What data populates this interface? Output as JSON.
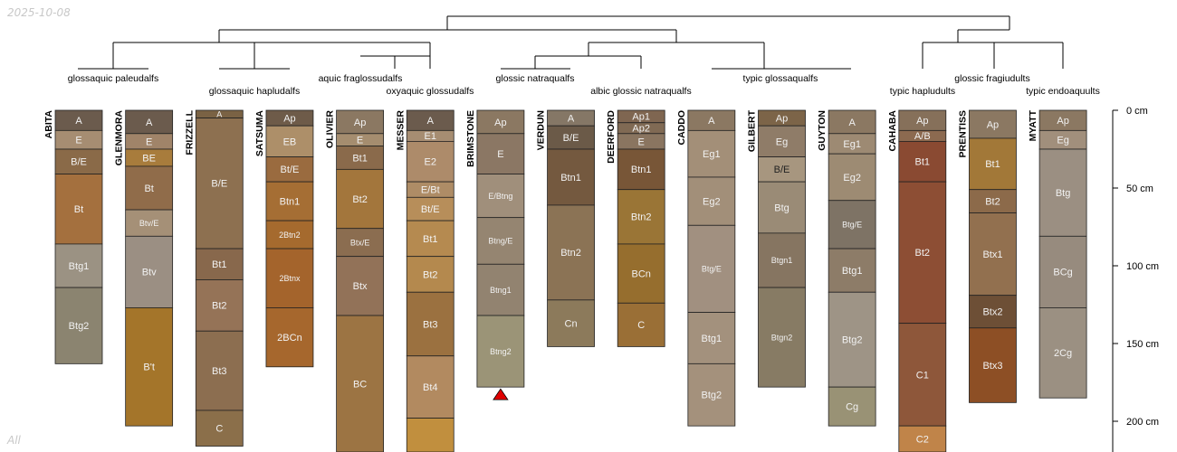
{
  "date_stamp": "2025-10-08",
  "corner_label": "All",
  "chart_data": {
    "type": "soil-profile-sketch",
    "depth_unit": "cm",
    "depth_axis": {
      "ticks": [
        0,
        50,
        100,
        150,
        200
      ],
      "tick_labels": [
        "0 cm",
        "50 cm",
        "100 cm",
        "150 cm",
        "200 cm"
      ],
      "range": [
        0,
        220
      ]
    },
    "taxa_labels": [
      "glossaquic paleudalfs",
      "glossaquic hapludalfs",
      "aquic fraglossudalfs",
      "oxyaquic glossudalfs",
      "glossic natraqualfs",
      "albic glossic natraqualfs",
      "typic glossaqualfs",
      "typic hapludults",
      "glossic fragiudults",
      "typic endoaquults"
    ],
    "truncated_marker_profile": "BRIMSTONE",
    "profiles": [
      {
        "name": "ABITA",
        "horizons": [
          {
            "name": "A",
            "top": 0,
            "bottom": 13,
            "color": "#6b5b4d"
          },
          {
            "name": "E",
            "top": 13,
            "bottom": 25,
            "color": "#a68d72"
          },
          {
            "name": "B/E",
            "top": 25,
            "bottom": 41,
            "color": "#8a6a48"
          },
          {
            "name": "Bt",
            "top": 41,
            "bottom": 86,
            "color": "#a4703e"
          },
          {
            "name": "Btg1",
            "top": 86,
            "bottom": 114,
            "color": "#9b9283"
          },
          {
            "name": "Btg2",
            "top": 114,
            "bottom": 163,
            "color": "#8b8470"
          }
        ]
      },
      {
        "name": "GLENMORA",
        "horizons": [
          {
            "name": "A",
            "top": 0,
            "bottom": 15,
            "color": "#6b5b4d"
          },
          {
            "name": "E",
            "top": 15,
            "bottom": 25,
            "color": "#a08469"
          },
          {
            "name": "BE",
            "top": 25,
            "bottom": 36,
            "color": "#a87c3c"
          },
          {
            "name": "Bt",
            "top": 36,
            "bottom": 64,
            "color": "#906c4a"
          },
          {
            "name": "Btv/E",
            "top": 64,
            "bottom": 81,
            "color": "#a59077"
          },
          {
            "name": "Btv",
            "top": 81,
            "bottom": 127,
            "color": "#9b8f83"
          },
          {
            "name": "B't",
            "top": 127,
            "bottom": 203,
            "color": "#a4752a"
          }
        ]
      },
      {
        "name": "FRIZZELL",
        "horizons": [
          {
            "name": "A",
            "top": 0,
            "bottom": 5,
            "color": "#7a6244"
          },
          {
            "name": "B/E",
            "top": 5,
            "bottom": 89,
            "color": "#8d7050"
          },
          {
            "name": "Bt1",
            "top": 89,
            "bottom": 109,
            "color": "#88684c"
          },
          {
            "name": "Bt2",
            "top": 109,
            "bottom": 142,
            "color": "#957357"
          },
          {
            "name": "Bt3",
            "top": 142,
            "bottom": 193,
            "color": "#8c6e50"
          },
          {
            "name": "C",
            "top": 193,
            "bottom": 216,
            "color": "#8b6f4a"
          }
        ]
      },
      {
        "name": "SATSUMA",
        "horizons": [
          {
            "name": "Ap",
            "top": 0,
            "bottom": 10,
            "color": "#6e5b49"
          },
          {
            "name": "EB",
            "top": 10,
            "bottom": 30,
            "color": "#ad8f69"
          },
          {
            "name": "Bt/E",
            "top": 30,
            "bottom": 46,
            "color": "#9a6b3f"
          },
          {
            "name": "Btn1",
            "top": 46,
            "bottom": 71,
            "color": "#a56e34"
          },
          {
            "name": "2Btn2",
            "top": 71,
            "bottom": 89,
            "color": "#a56a2e"
          },
          {
            "name": "2Btnx",
            "top": 89,
            "bottom": 127,
            "color": "#a4642c"
          },
          {
            "name": "2BCn",
            "top": 127,
            "bottom": 165,
            "color": "#a6672d"
          }
        ]
      },
      {
        "name": "OLIVIER",
        "horizons": [
          {
            "name": "Ap",
            "top": 0,
            "bottom": 15,
            "color": "#8b7862"
          },
          {
            "name": "E",
            "top": 15,
            "bottom": 23,
            "color": "#a58d6f"
          },
          {
            "name": "Bt1",
            "top": 23,
            "bottom": 38,
            "color": "#8a6a4b"
          },
          {
            "name": "Bt2",
            "top": 38,
            "bottom": 76,
            "color": "#a3763c"
          },
          {
            "name": "Btx/E",
            "top": 76,
            "bottom": 94,
            "color": "#8b6d50"
          },
          {
            "name": "Btx",
            "top": 94,
            "bottom": 132,
            "color": "#927258"
          },
          {
            "name": "BC",
            "top": 132,
            "bottom": 220,
            "color": "#9c7443"
          }
        ]
      },
      {
        "name": "MESSER",
        "horizons": [
          {
            "name": "A",
            "top": 0,
            "bottom": 13,
            "color": "#6b5b4d"
          },
          {
            "name": "E1",
            "top": 13,
            "bottom": 20,
            "color": "#a68d72"
          },
          {
            "name": "E2",
            "top": 20,
            "bottom": 46,
            "color": "#ad8b6a"
          },
          {
            "name": "E/Bt",
            "top": 46,
            "bottom": 56,
            "color": "#ae8c66"
          },
          {
            "name": "Bt/E",
            "top": 56,
            "bottom": 71,
            "color": "#b78e5a"
          },
          {
            "name": "Bt1",
            "top": 71,
            "bottom": 94,
            "color": "#b58a50"
          },
          {
            "name": "Bt2",
            "top": 94,
            "bottom": 117,
            "color": "#b4894e"
          },
          {
            "name": "Bt3",
            "top": 117,
            "bottom": 158,
            "color": "#9b7140"
          },
          {
            "name": "Bt4",
            "top": 158,
            "bottom": 198,
            "color": "#b28a60"
          },
          {
            "name": "",
            "top": 198,
            "bottom": 220,
            "color": "#c18f3e"
          }
        ]
      },
      {
        "name": "BRIMSTONE",
        "horizons": [
          {
            "name": "Ap",
            "top": 0,
            "bottom": 15,
            "color": "#8b7862"
          },
          {
            "name": "E",
            "top": 15,
            "bottom": 41,
            "color": "#8b7764"
          },
          {
            "name": "E/Btng",
            "top": 41,
            "bottom": 69,
            "color": "#a08f7b"
          },
          {
            "name": "Btng/E",
            "top": 69,
            "bottom": 99,
            "color": "#958571"
          },
          {
            "name": "Btng1",
            "top": 99,
            "bottom": 132,
            "color": "#928370"
          },
          {
            "name": "Btng2",
            "top": 132,
            "bottom": 178,
            "color": "#9b9477"
          }
        ]
      },
      {
        "name": "VERDUN",
        "horizons": [
          {
            "name": "A",
            "top": 0,
            "bottom": 10,
            "color": "#857766"
          },
          {
            "name": "B/E",
            "top": 10,
            "bottom": 25,
            "color": "#6b5a48"
          },
          {
            "name": "Btn1",
            "top": 25,
            "bottom": 61,
            "color": "#74593f"
          },
          {
            "name": "Btn2",
            "top": 61,
            "bottom": 122,
            "color": "#8b7355"
          },
          {
            "name": "Cn",
            "top": 122,
            "bottom": 152,
            "color": "#8c7a5b"
          }
        ]
      },
      {
        "name": "DEERFORD",
        "horizons": [
          {
            "name": "Ap1",
            "top": 0,
            "bottom": 8,
            "color": "#7f6651"
          },
          {
            "name": "Ap2",
            "top": 8,
            "bottom": 15,
            "color": "#806a54"
          },
          {
            "name": "E",
            "top": 15,
            "bottom": 25,
            "color": "#8a7560"
          },
          {
            "name": "Btn1",
            "top": 25,
            "bottom": 51,
            "color": "#785637"
          },
          {
            "name": "Btn2",
            "top": 51,
            "bottom": 86,
            "color": "#9a7536"
          },
          {
            "name": "BCn",
            "top": 86,
            "bottom": 124,
            "color": "#966e2e"
          },
          {
            "name": "C",
            "top": 124,
            "bottom": 152,
            "color": "#9a6f36"
          }
        ]
      },
      {
        "name": "CADDO",
        "horizons": [
          {
            "name": "A",
            "top": 0,
            "bottom": 13,
            "color": "#8b7862"
          },
          {
            "name": "Eg1",
            "top": 13,
            "bottom": 43,
            "color": "#a38f78"
          },
          {
            "name": "Eg2",
            "top": 43,
            "bottom": 74,
            "color": "#a28f79"
          },
          {
            "name": "Btg/E",
            "top": 74,
            "bottom": 130,
            "color": "#a19080"
          },
          {
            "name": "Btg1",
            "top": 130,
            "bottom": 163,
            "color": "#a3917d"
          },
          {
            "name": "Btg2",
            "top": 163,
            "bottom": 203,
            "color": "#a4917c"
          }
        ]
      },
      {
        "name": "GILBERT",
        "horizons": [
          {
            "name": "Ap",
            "top": 0,
            "bottom": 10,
            "color": "#7c6448"
          },
          {
            "name": "Eg",
            "top": 10,
            "bottom": 30,
            "color": "#8f7c68"
          },
          {
            "name": "B/E",
            "top": 30,
            "bottom": 46,
            "color": "#a7967f"
          },
          {
            "name": "Btg",
            "top": 46,
            "bottom": 79,
            "color": "#9a8b76"
          },
          {
            "name": "Btgn1",
            "top": 79,
            "bottom": 114,
            "color": "#867561"
          },
          {
            "name": "Btgn2",
            "top": 114,
            "bottom": 178,
            "color": "#877b64"
          }
        ]
      },
      {
        "name": "GUYTON",
        "horizons": [
          {
            "name": "A",
            "top": 0,
            "bottom": 15,
            "color": "#8b7862"
          },
          {
            "name": "Eg1",
            "top": 15,
            "bottom": 28,
            "color": "#9d8a73"
          },
          {
            "name": "Eg2",
            "top": 28,
            "bottom": 58,
            "color": "#9d8b73"
          },
          {
            "name": "Btg/E",
            "top": 58,
            "bottom": 89,
            "color": "#7e7365"
          },
          {
            "name": "Btg1",
            "top": 89,
            "bottom": 117,
            "color": "#8d7c68"
          },
          {
            "name": "Btg2",
            "top": 117,
            "bottom": 178,
            "color": "#9e9486"
          },
          {
            "name": "Cg",
            "top": 178,
            "bottom": 203,
            "color": "#999275"
          }
        ]
      },
      {
        "name": "CAHABA",
        "horizons": [
          {
            "name": "Ap",
            "top": 0,
            "bottom": 13,
            "color": "#86705a"
          },
          {
            "name": "A/B",
            "top": 13,
            "bottom": 20,
            "color": "#8c6a50"
          },
          {
            "name": "Bt1",
            "top": 20,
            "bottom": 46,
            "color": "#8a4a32"
          },
          {
            "name": "Bt2",
            "top": 46,
            "bottom": 137,
            "color": "#8d4e34"
          },
          {
            "name": "C1",
            "top": 137,
            "bottom": 203,
            "color": "#8e573a"
          },
          {
            "name": "C2",
            "top": 203,
            "bottom": 220,
            "color": "#c08449"
          }
        ]
      },
      {
        "name": "PRENTISS",
        "horizons": [
          {
            "name": "Ap",
            "top": 0,
            "bottom": 18,
            "color": "#8b7862"
          },
          {
            "name": "Bt1",
            "top": 18,
            "bottom": 51,
            "color": "#a27838"
          },
          {
            "name": "Bt2",
            "top": 51,
            "bottom": 66,
            "color": "#8c6a4a"
          },
          {
            "name": "Btx1",
            "top": 66,
            "bottom": 119,
            "color": "#92704f"
          },
          {
            "name": "Btx2",
            "top": 119,
            "bottom": 140,
            "color": "#6d4f36"
          },
          {
            "name": "Btx3",
            "top": 140,
            "bottom": 188,
            "color": "#8d4f25"
          }
        ]
      },
      {
        "name": "MYATT",
        "horizons": [
          {
            "name": "Ap",
            "top": 0,
            "bottom": 13,
            "color": "#8b7862"
          },
          {
            "name": "Eg",
            "top": 13,
            "bottom": 25,
            "color": "#a18f7c"
          },
          {
            "name": "Btg",
            "top": 25,
            "bottom": 81,
            "color": "#9b8f82"
          },
          {
            "name": "BCg",
            "top": 81,
            "bottom": 127,
            "color": "#978b7e"
          },
          {
            "name": "2Cg",
            "top": 127,
            "bottom": 185,
            "color": "#9b9082"
          }
        ]
      }
    ]
  }
}
